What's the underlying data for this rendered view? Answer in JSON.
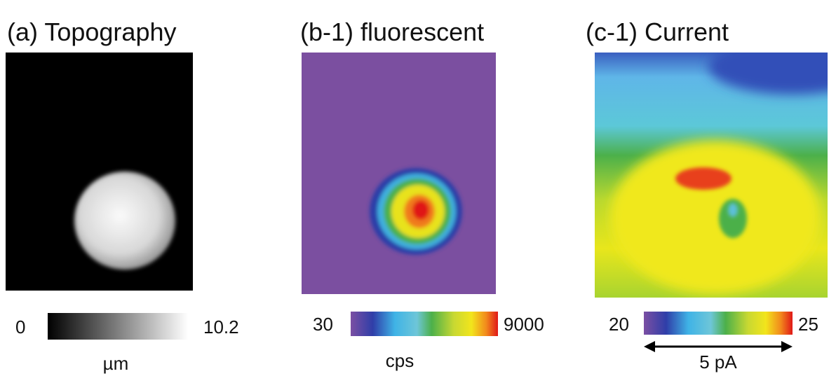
{
  "panels": [
    {
      "title": "(a) Topography",
      "scale_min": 0,
      "scale_max": 10.2,
      "unit": "µm"
    },
    {
      "title": "(b-1) fluorescent",
      "scale_min": 30,
      "scale_max": 9000,
      "unit": "cps"
    },
    {
      "title": "(c-1) Current",
      "scale_min": 20,
      "scale_max": 25,
      "unit": "5 pA"
    }
  ]
}
